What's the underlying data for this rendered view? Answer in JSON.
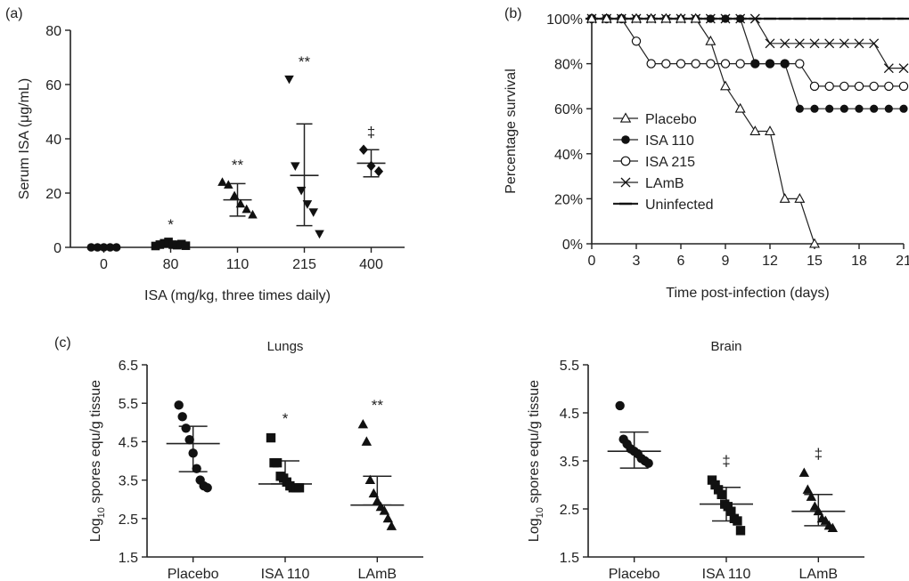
{
  "chart_data": [
    {
      "id": "a",
      "panel_label": "(a)",
      "type": "scatter",
      "xlabel": "ISA (mg/kg, three times daily)",
      "ylabel": "Serum ISA (μg/mL)",
      "categories": [
        "0",
        "80",
        "110",
        "215",
        "400"
      ],
      "ylim": [
        0,
        80
      ],
      "yticks": [
        "0",
        "20",
        "40",
        "60",
        "80"
      ],
      "groups": [
        {
          "category": "0",
          "marker": "circle",
          "points": [
            0,
            0,
            0,
            0,
            0
          ],
          "mean": 0,
          "sd_low": 0,
          "sd_high": 0,
          "annotation": ""
        },
        {
          "category": "80",
          "marker": "square",
          "points": [
            0.5,
            1,
            1.5,
            2,
            1,
            0.8,
            1.2,
            0.6
          ],
          "mean": 1,
          "sd_low": 0.2,
          "sd_high": 1.8,
          "annotation": "*"
        },
        {
          "category": "110",
          "marker": "triangle-up",
          "points": [
            24,
            23,
            19,
            16,
            14,
            12
          ],
          "mean": 17.5,
          "sd_low": 11.5,
          "sd_high": 23.5,
          "annotation": "**"
        },
        {
          "category": "215",
          "marker": "triangle-down",
          "points": [
            62,
            30,
            21,
            16,
            13,
            5
          ],
          "mean": 26.5,
          "sd_low": 8,
          "sd_high": 45.5,
          "annotation": "**"
        },
        {
          "category": "400",
          "marker": "diamond",
          "points": [
            36,
            30,
            28
          ],
          "mean": 31,
          "sd_low": 26,
          "sd_high": 36,
          "annotation": "‡"
        }
      ]
    },
    {
      "id": "b",
      "panel_label": "(b)",
      "type": "line",
      "xlabel": "Time post-infection (days)",
      "ylabel": "Percentage survival",
      "xlim": [
        0,
        21
      ],
      "xticks": [
        "0",
        "3",
        "6",
        "9",
        "12",
        "15",
        "18",
        "21"
      ],
      "ylim": [
        0,
        100
      ],
      "yticks": [
        "0%",
        "20%",
        "40%",
        "60%",
        "80%",
        "100%"
      ],
      "legend_position": "center-left",
      "series": [
        {
          "name": "Uninfected",
          "marker": "dash",
          "points": [
            [
              0,
              100
            ],
            [
              1,
              100
            ],
            [
              2,
              100
            ],
            [
              3,
              100
            ],
            [
              4,
              100
            ],
            [
              5,
              100
            ],
            [
              6,
              100
            ],
            [
              7,
              100
            ],
            [
              8,
              100
            ],
            [
              9,
              100
            ],
            [
              10,
              100
            ],
            [
              11,
              100
            ],
            [
              12,
              100
            ],
            [
              13,
              100
            ],
            [
              14,
              100
            ],
            [
              15,
              100
            ],
            [
              16,
              100
            ],
            [
              17,
              100
            ],
            [
              18,
              100
            ],
            [
              19,
              100
            ],
            [
              20,
              100
            ],
            [
              21,
              100
            ]
          ]
        },
        {
          "name": "LAmB",
          "marker": "cross",
          "points": [
            [
              0,
              100
            ],
            [
              1,
              100
            ],
            [
              2,
              100
            ],
            [
              3,
              100
            ],
            [
              4,
              100
            ],
            [
              5,
              100
            ],
            [
              6,
              100
            ],
            [
              7,
              100
            ],
            [
              8,
              100
            ],
            [
              9,
              100
            ],
            [
              10,
              100
            ],
            [
              11,
              100
            ],
            [
              12,
              89
            ],
            [
              13,
              89
            ],
            [
              14,
              89
            ],
            [
              15,
              89
            ],
            [
              16,
              89
            ],
            [
              17,
              89
            ],
            [
              18,
              89
            ],
            [
              19,
              89
            ],
            [
              20,
              78
            ],
            [
              21,
              78
            ]
          ]
        },
        {
          "name": "ISA 215",
          "marker": "circle-open",
          "points": [
            [
              0,
              100
            ],
            [
              1,
              100
            ],
            [
              2,
              100
            ],
            [
              3,
              90
            ],
            [
              4,
              80
            ],
            [
              5,
              80
            ],
            [
              6,
              80
            ],
            [
              7,
              80
            ],
            [
              8,
              80
            ],
            [
              9,
              80
            ],
            [
              10,
              80
            ],
            [
              11,
              80
            ],
            [
              12,
              80
            ],
            [
              13,
              80
            ],
            [
              14,
              80
            ],
            [
              15,
              70
            ],
            [
              16,
              70
            ],
            [
              17,
              70
            ],
            [
              18,
              70
            ],
            [
              19,
              70
            ],
            [
              20,
              70
            ],
            [
              21,
              70
            ]
          ]
        },
        {
          "name": "ISA 110",
          "marker": "circle-filled",
          "points": [
            [
              0,
              100
            ],
            [
              1,
              100
            ],
            [
              2,
              100
            ],
            [
              3,
              100
            ],
            [
              4,
              100
            ],
            [
              5,
              100
            ],
            [
              6,
              100
            ],
            [
              7,
              100
            ],
            [
              8,
              100
            ],
            [
              9,
              100
            ],
            [
              10,
              100
            ],
            [
              11,
              80
            ],
            [
              12,
              80
            ],
            [
              13,
              80
            ],
            [
              14,
              60
            ],
            [
              15,
              60
            ],
            [
              16,
              60
            ],
            [
              17,
              60
            ],
            [
              18,
              60
            ],
            [
              19,
              60
            ],
            [
              20,
              60
            ],
            [
              21,
              60
            ]
          ]
        },
        {
          "name": "Placebo",
          "marker": "triangle-open",
          "points": [
            [
              0,
              100
            ],
            [
              1,
              100
            ],
            [
              2,
              100
            ],
            [
              3,
              100
            ],
            [
              4,
              100
            ],
            [
              5,
              100
            ],
            [
              6,
              100
            ],
            [
              7,
              100
            ],
            [
              8,
              90
            ],
            [
              9,
              70
            ],
            [
              10,
              60
            ],
            [
              11,
              50
            ],
            [
              12,
              50
            ],
            [
              13,
              20
            ],
            [
              14,
              20
            ],
            [
              15,
              0
            ]
          ]
        }
      ],
      "legend_order": [
        "Placebo",
        "ISA 110",
        "ISA 215",
        "LAmB",
        "Uninfected"
      ]
    },
    {
      "id": "c-lungs",
      "panel_label": "(c)",
      "type": "scatter",
      "title": "Lungs",
      "ylabel_pre": "Log",
      "ylabel_sub": "10",
      "ylabel_post": " spores equ/g tissue",
      "categories": [
        "Placebo",
        "ISA 110",
        "LAmB"
      ],
      "ylim": [
        1.5,
        6.5
      ],
      "yticks": [
        "1.5",
        "2.5",
        "3.5",
        "4.5",
        "5.5",
        "6.5"
      ],
      "groups": [
        {
          "category": "Placebo",
          "marker": "circle",
          "points": [
            5.45,
            5.15,
            4.85,
            4.55,
            4.2,
            3.8,
            3.5,
            3.35,
            3.3
          ],
          "mean": 4.45,
          "sd_low": 3.72,
          "sd_high": 4.9,
          "annotation": ""
        },
        {
          "category": "ISA 110",
          "marker": "square",
          "points": [
            4.6,
            3.95,
            3.95,
            3.6,
            3.55,
            3.45,
            3.35,
            3.3,
            3.3,
            3.3
          ],
          "mean": 3.4,
          "sd_low": 3.4,
          "sd_high": 4.0,
          "annotation": "*"
        },
        {
          "category": "LAmB",
          "marker": "triangle-up",
          "points": [
            4.95,
            4.5,
            3.5,
            3.15,
            2.95,
            2.8,
            2.7,
            2.5,
            2.3
          ],
          "mean": 2.85,
          "sd_low": 2.85,
          "sd_high": 3.6,
          "annotation": "**"
        }
      ]
    },
    {
      "id": "c-brain",
      "panel_label": "",
      "type": "scatter",
      "title": "Brain",
      "ylabel_pre": "Log",
      "ylabel_sub": "10",
      "ylabel_post": " spores equ/g tissue",
      "categories": [
        "Placebo",
        "ISA 110",
        "LAmB"
      ],
      "ylim": [
        1.5,
        5.5
      ],
      "yticks": [
        "1.5",
        "2.5",
        "3.5",
        "4.5",
        "5.5"
      ],
      "groups": [
        {
          "category": "Placebo",
          "marker": "circle",
          "points": [
            4.65,
            3.95,
            3.85,
            3.75,
            3.7,
            3.65,
            3.55,
            3.5,
            3.45
          ],
          "mean": 3.7,
          "sd_low": 3.35,
          "sd_high": 4.1,
          "annotation": ""
        },
        {
          "category": "ISA 110",
          "marker": "square",
          "points": [
            3.1,
            3.0,
            2.9,
            2.8,
            2.6,
            2.55,
            2.45,
            2.3,
            2.25,
            2.05
          ],
          "mean": 2.6,
          "sd_low": 2.25,
          "sd_high": 2.95,
          "annotation": "‡"
        },
        {
          "category": "LAmB",
          "marker": "triangle-up",
          "points": [
            3.25,
            2.9,
            2.75,
            2.55,
            2.45,
            2.3,
            2.25,
            2.15,
            2.1
          ],
          "mean": 2.45,
          "sd_low": 2.15,
          "sd_high": 2.8,
          "annotation": "‡"
        }
      ]
    }
  ]
}
